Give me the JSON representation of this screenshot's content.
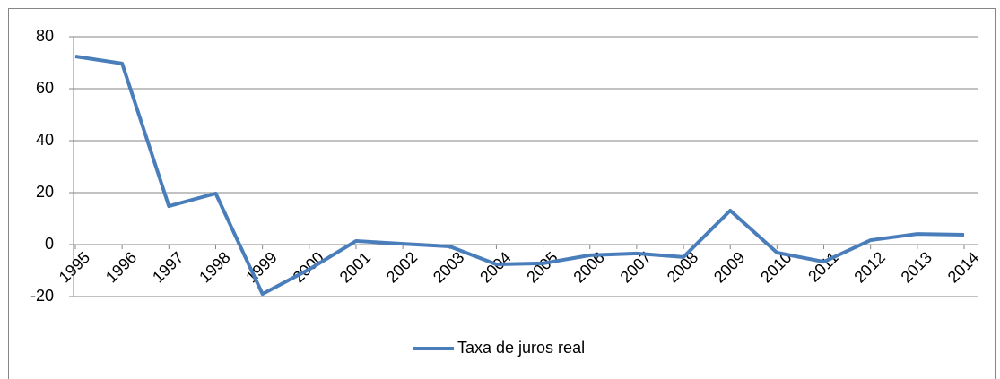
{
  "chart_data": {
    "type": "line",
    "categories": [
      "1995",
      "1996",
      "1997",
      "1998",
      "1999",
      "2000",
      "2001",
      "2002",
      "2003",
      "2004",
      "2005",
      "2006",
      "2007",
      "2008",
      "2009",
      "2010",
      "2011",
      "2012",
      "2013",
      "2014"
    ],
    "series": [
      {
        "name": "Taxa de juros real",
        "color": "#4a7ebb",
        "values": [
          72.4,
          69.7,
          14.8,
          19.7,
          -19,
          -9.5,
          1.4,
          0.3,
          -0.7,
          -7.6,
          -7.2,
          -4.1,
          -3.4,
          -4.8,
          13.1,
          -3.1,
          -6.6,
          1.7,
          4.1,
          3.8
        ]
      }
    ],
    "ylim": [
      -20,
      80
    ],
    "yticks": [
      -20,
      0,
      20,
      40,
      60,
      80
    ],
    "grid": true,
    "legend": "bottom"
  }
}
